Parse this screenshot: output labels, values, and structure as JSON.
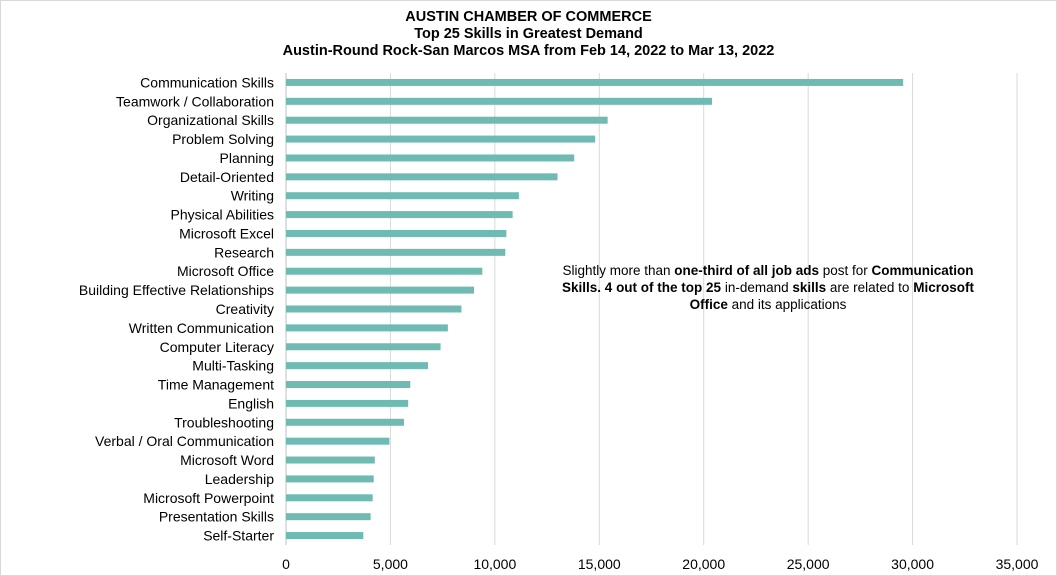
{
  "titles": {
    "line1": "AUSTIN CHAMBER OF COMMERCE",
    "line2": "Top 25 Skills in Greatest Demand",
    "line3": "Austin-Round Rock-San Marcos MSA from Feb 14, 2022 to Mar 13, 2022"
  },
  "annotation": {
    "p1": "Slightly more than ",
    "b1": "one-third of all job ads",
    "p2": " post for ",
    "b2": "Communication  Skills. 4 out of the top 25",
    "p3": " in-demand ",
    "b3": "skills",
    "p4": " are related to ",
    "b4": "Microsoft Office",
    "p5": " and its applications"
  },
  "colors": {
    "bar": "#6fbab3",
    "grid": "#d9d9d9",
    "axis": "#bfbfbf",
    "text": "#000000"
  },
  "chart_data": {
    "type": "bar",
    "orientation": "horizontal",
    "title": "AUSTIN CHAMBER OF COMMERCE",
    "categories": [
      "Communication Skills",
      "Teamwork / Collaboration",
      "Organizational Skills",
      "Problem Solving",
      "Planning",
      "Detail-Oriented",
      "Writing",
      "Physical Abilities",
      "Microsoft Excel",
      "Research",
      "Microsoft Office",
      "Building Effective Relationships",
      "Creativity",
      "Written Communication",
      "Computer Literacy",
      "Multi-Tasking",
      "Time Management",
      "English",
      "Troubleshooting",
      "Verbal / Oral Communication",
      "Microsoft Word",
      "Leadership",
      "Microsoft Powerpoint",
      "Presentation Skills",
      "Self-Starter"
    ],
    "values": [
      29550,
      20400,
      15400,
      14800,
      13800,
      13000,
      11150,
      10850,
      10550,
      10500,
      9400,
      9000,
      8400,
      7750,
      7400,
      6800,
      5950,
      5850,
      5650,
      4950,
      4250,
      4200,
      4150,
      4050,
      3700
    ],
    "xlim": [
      0,
      35000
    ],
    "xticks": [
      0,
      5000,
      10000,
      15000,
      20000,
      25000,
      30000,
      35000
    ],
    "xtick_labels": [
      "0",
      "5,000",
      "10,000",
      "15,000",
      "20,000",
      "25,000",
      "30,000",
      "35,000"
    ],
    "grid": "vertical",
    "legend": "none"
  }
}
